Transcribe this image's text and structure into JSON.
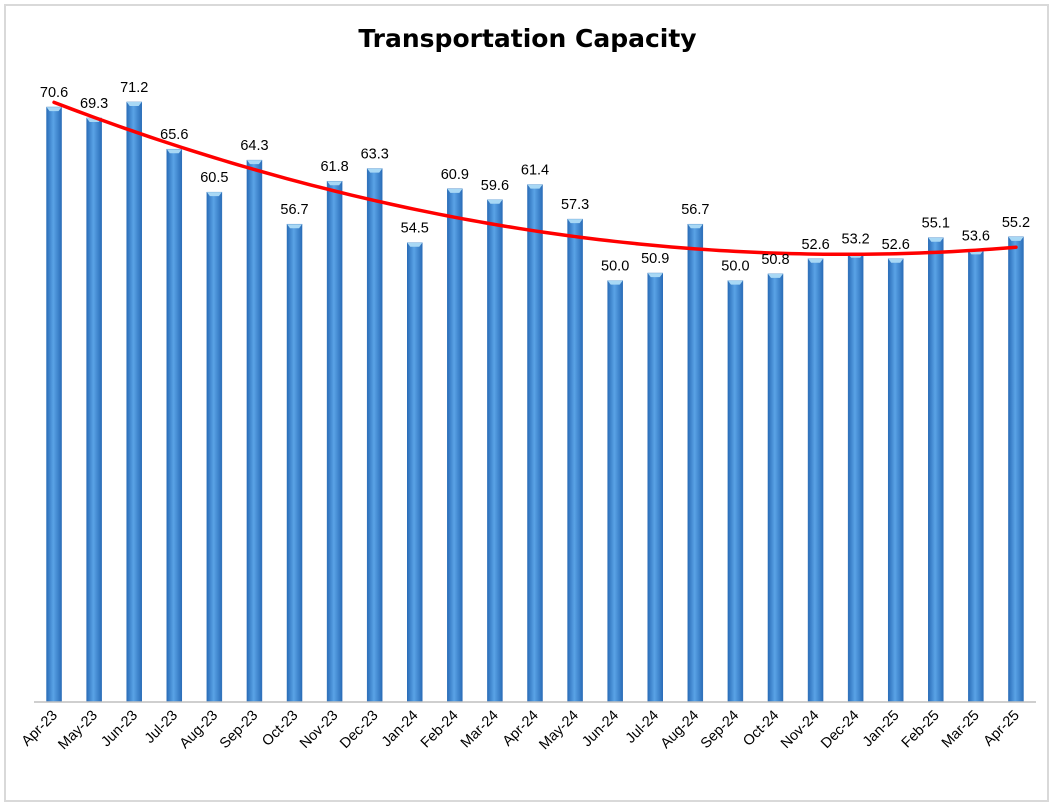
{
  "chart_data": {
    "type": "bar",
    "title": "Transportation Capacity",
    "categories": [
      "Apr-23",
      "May-23",
      "Jun-23",
      "Jul-23",
      "Aug-23",
      "Sep-23",
      "Oct-23",
      "Nov-23",
      "Dec-23",
      "Jan-24",
      "Feb-24",
      "Mar-24",
      "Apr-24",
      "May-24",
      "Jun-24",
      "Jul-24",
      "Aug-24",
      "Sep-24",
      "Oct-24",
      "Nov-24",
      "Dec-24",
      "Jan-25",
      "Feb-25",
      "Mar-25",
      "Apr-25"
    ],
    "values": [
      70.6,
      69.3,
      71.2,
      65.6,
      60.5,
      64.3,
      56.7,
      61.8,
      63.3,
      54.5,
      60.9,
      59.6,
      61.4,
      57.3,
      50.0,
      50.9,
      56.7,
      50.0,
      50.8,
      52.6,
      53.2,
      52.6,
      55.1,
      53.6,
      55.2
    ],
    "data_labels": [
      "70.6",
      "69.3",
      "71.2",
      "65.6",
      "60.5",
      "64.3",
      "56.7",
      "61.8",
      "63.3",
      "54.5",
      "60.9",
      "59.6",
      "61.4",
      "57.3",
      "50.0",
      "50.9",
      "56.7",
      "50.0",
      "50.8",
      "52.6",
      "53.2",
      "52.6",
      "55.1",
      "53.6",
      "55.2"
    ],
    "trendline": {
      "type": "polynomial",
      "color": "#ff0000"
    },
    "ylim": [
      0,
      75
    ],
    "xlabel": "",
    "ylabel": "",
    "grid": false,
    "legend": "none",
    "colors": {
      "bar": "#3d86d1",
      "bar_top": "#a8d8f5",
      "axis": "#bfbfbf",
      "trend": "#ff0000"
    }
  }
}
